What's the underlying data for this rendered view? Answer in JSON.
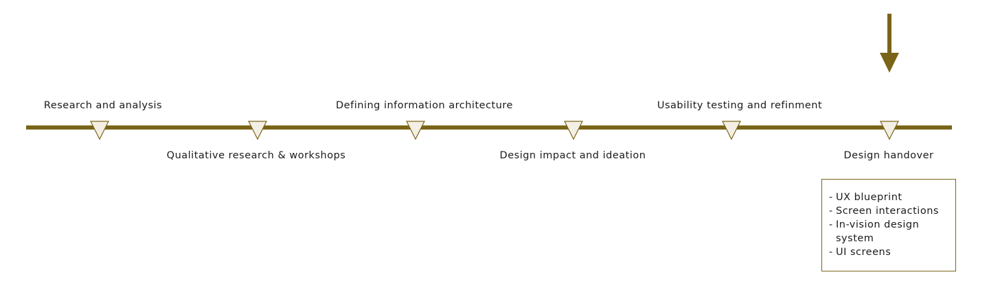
{
  "colors": {
    "line": "#7a6418",
    "marker_fill": "#f4efe4",
    "marker_stroke": "#7a6418",
    "box_border": "#7a6418",
    "text": "#1a1a1a"
  },
  "timeline": {
    "stages": [
      {
        "label": "Research and analysis",
        "position": "top"
      },
      {
        "label": "Qualitative research & workshops",
        "position": "bottom"
      },
      {
        "label": "Defining information architecture",
        "position": "top"
      },
      {
        "label": "Design impact and ideation",
        "position": "bottom"
      },
      {
        "label": "Usability testing and refinment",
        "position": "top"
      },
      {
        "label": "Design handover",
        "position": "bottom"
      }
    ],
    "current_stage_icon": "down-arrow-icon",
    "marker_icon": "triangle-down-icon"
  },
  "deliverables": {
    "dash": "-",
    "items": [
      "UX blueprint",
      "Screen interactions",
      "In-vision design system",
      "UI screens"
    ]
  }
}
